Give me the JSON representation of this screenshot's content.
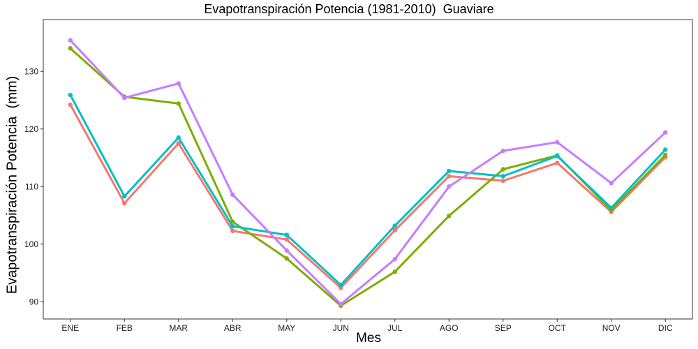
{
  "chart_data": {
    "type": "line",
    "title": "Evapotranspiración Potencia (1981-2010)  Guaviare",
    "xlabel": "Mes",
    "ylabel": "Evapotranspiración Potencia  (mm)",
    "categories": [
      "ENE",
      "FEB",
      "MAR",
      "ABR",
      "MAY",
      "JUN",
      "JUL",
      "AGO",
      "SEP",
      "OCT",
      "NOV",
      "DIC"
    ],
    "yticks": [
      90,
      100,
      110,
      120,
      130
    ],
    "ylim": [
      87,
      139
    ],
    "grid": false,
    "legend": "none",
    "series": [
      {
        "color": "#F8766D",
        "values": [
          124.2,
          107.1,
          117.5,
          102.3,
          100.8,
          92.4,
          102.4,
          111.8,
          111.0,
          114.1,
          105.6,
          115.1
        ]
      },
      {
        "color": "#7CAE00",
        "values": [
          134.0,
          125.6,
          124.4,
          103.9,
          97.5,
          89.3,
          95.2,
          104.9,
          113.0,
          115.4,
          105.9,
          115.5
        ]
      },
      {
        "color": "#00BFC4",
        "values": [
          125.9,
          108.3,
          118.5,
          103.1,
          101.6,
          92.9,
          103.2,
          112.7,
          111.8,
          115.3,
          106.3,
          116.4
        ]
      },
      {
        "color": "#C77CFF",
        "values": [
          135.4,
          125.4,
          127.9,
          108.6,
          98.9,
          89.6,
          97.4,
          110.0,
          116.2,
          117.7,
          110.6,
          119.4
        ]
      }
    ]
  }
}
